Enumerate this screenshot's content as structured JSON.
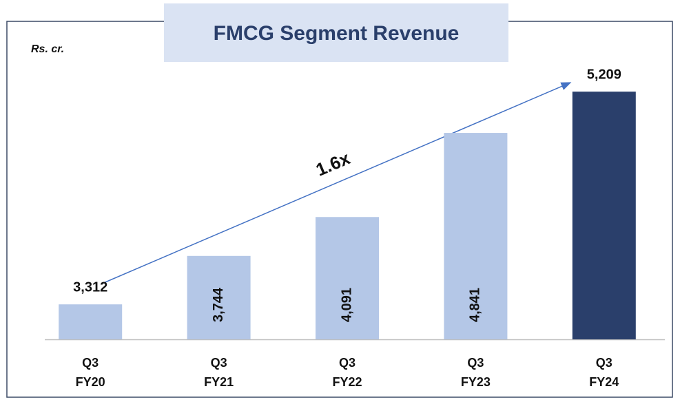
{
  "chart_data": {
    "type": "bar",
    "title": "FMCG Segment Revenue",
    "unit_label": "Rs. cr.",
    "categories": [
      "Q3\nFY20",
      "Q3\nFY21",
      "Q3\nFY22",
      "Q3\nFY23",
      "Q3\nFY24"
    ],
    "values": [
      3312,
      3744,
      4091,
      4841,
      5209
    ],
    "value_labels": [
      "3,312",
      "3,744",
      "4,091",
      "4,841",
      "5,209"
    ],
    "colors": [
      "#b4c7e7",
      "#b4c7e7",
      "#b4c7e7",
      "#b4c7e7",
      "#2a3f6b"
    ],
    "ylim": [
      3000,
      5400
    ],
    "annotation": "1.6x"
  }
}
